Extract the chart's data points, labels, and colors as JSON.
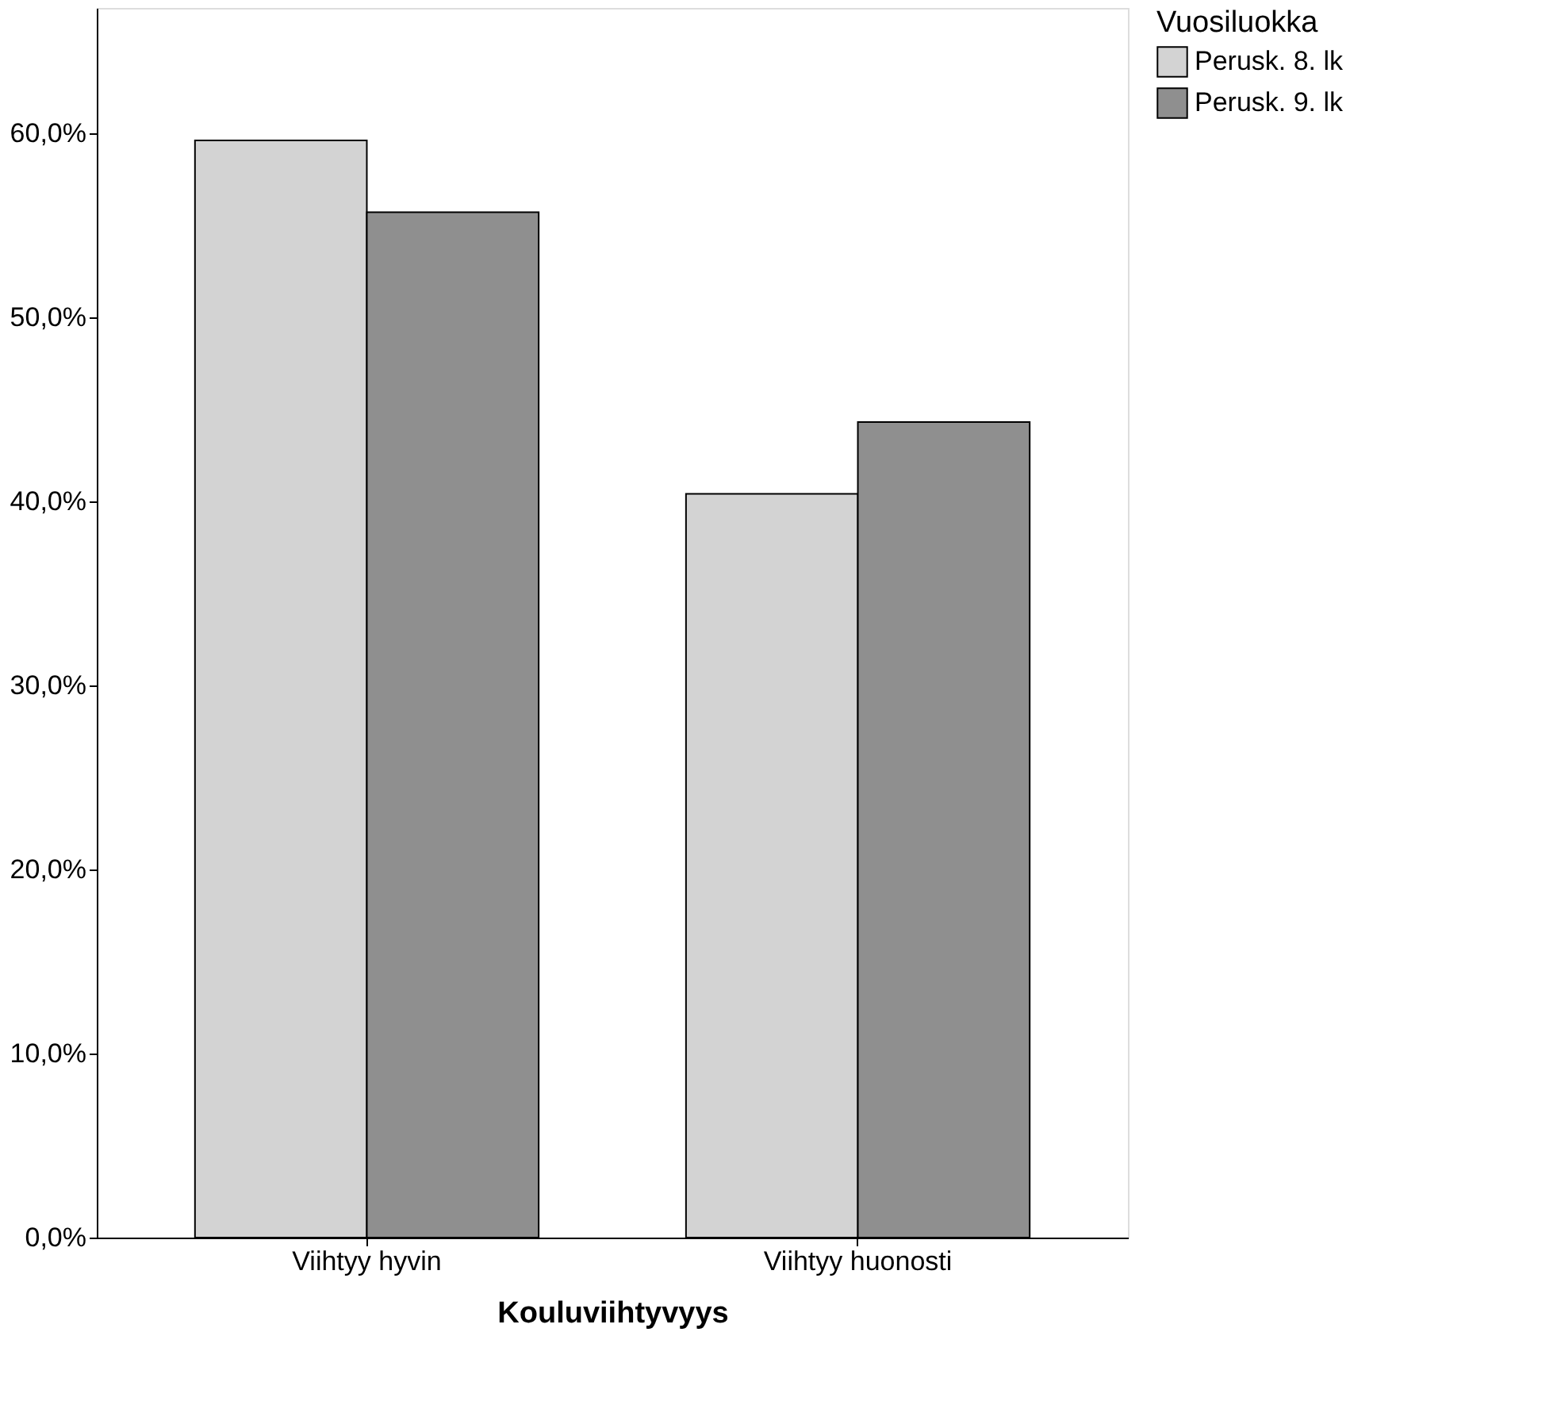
{
  "chart_data": {
    "type": "bar",
    "xlabel": "Kouluviihtyvyys",
    "legend_title": "Vuosiluokka",
    "categories": [
      "Viihtyy hyvin",
      "Viihtyy huonosti"
    ],
    "series": [
      {
        "name": "Perusk. 8. lk",
        "color": "#d3d3d3",
        "values": [
          59.6,
          40.4
        ]
      },
      {
        "name": "Perusk. 9. lk",
        "color": "#8f8f8f",
        "values": [
          55.7,
          44.3
        ]
      }
    ],
    "ylim": [
      0,
      66.8
    ],
    "yticks": [
      {
        "value": 0,
        "label": "0,0%"
      },
      {
        "value": 10,
        "label": "10,0%"
      },
      {
        "value": 20,
        "label": "20,0%"
      },
      {
        "value": 30,
        "label": "30,0%"
      },
      {
        "value": 40,
        "label": "40,0%"
      },
      {
        "value": 50,
        "label": "50,0%"
      },
      {
        "value": 60,
        "label": "60,0%"
      }
    ],
    "grid": false,
    "legend": "top right"
  }
}
